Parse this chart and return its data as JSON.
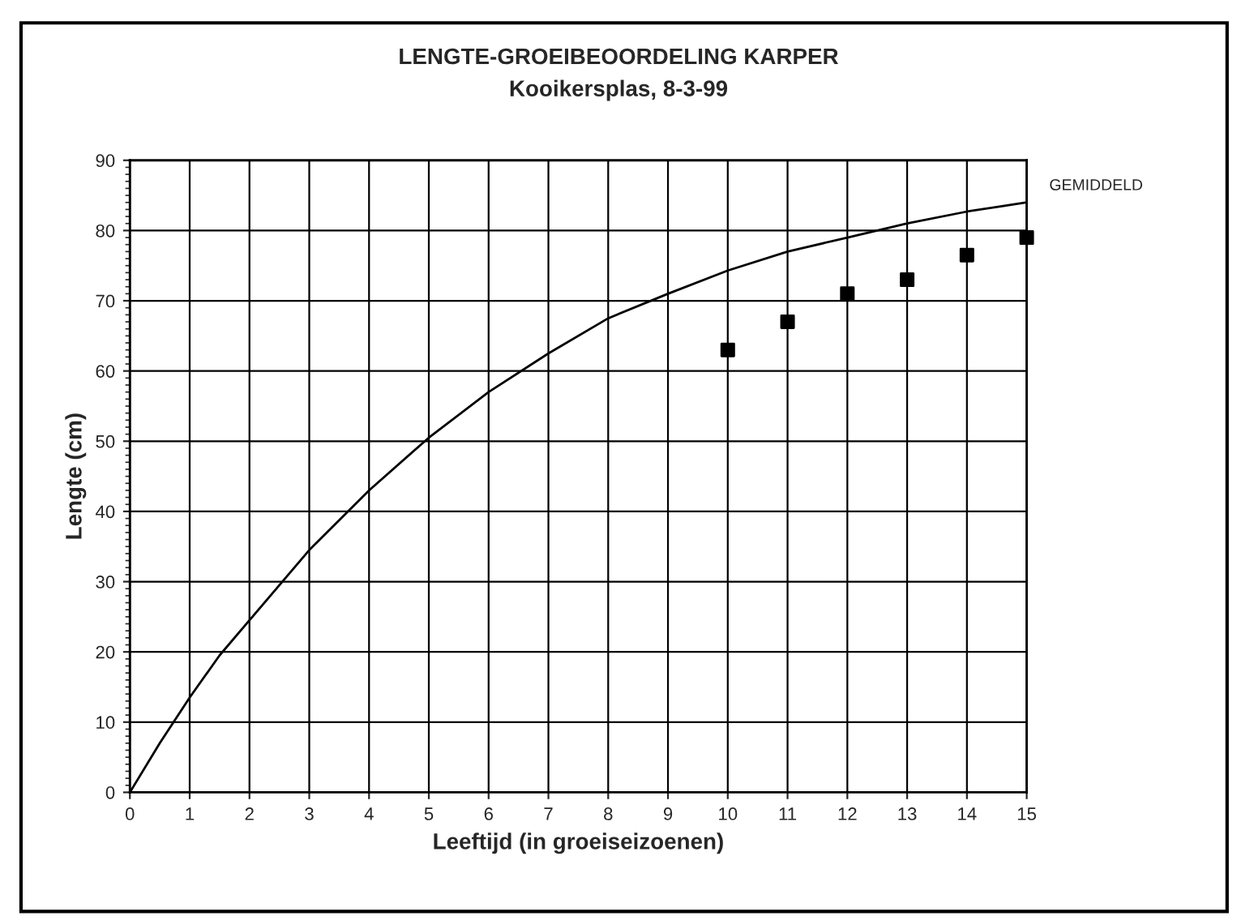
{
  "chart_data": {
    "type": "line",
    "title": "LENGTE-GROEIBEOORDELING KARPER",
    "subtitle": "Kooikersplas, 8-3-99",
    "xlabel": "Leeftijd (in groeiseizoenen)",
    "ylabel": "Lengte (cm)",
    "xlim": [
      0,
      15
    ],
    "ylim": [
      0,
      90
    ],
    "xticks": [
      0,
      1,
      2,
      3,
      4,
      5,
      6,
      7,
      8,
      9,
      10,
      11,
      12,
      13,
      14,
      15
    ],
    "yticks": [
      0,
      10,
      20,
      30,
      40,
      50,
      60,
      70,
      80,
      90
    ],
    "grid": true,
    "legend": false,
    "series": [
      {
        "name": "GEMIDDELD",
        "color": "#000000",
        "marker": "none",
        "line_style": "solid",
        "x": [
          0,
          0.5,
          1,
          1.5,
          2,
          3,
          4,
          5,
          6,
          7,
          8,
          9,
          10,
          11,
          12,
          13,
          14,
          15
        ],
        "values": [
          0,
          7,
          13.5,
          19.5,
          24.5,
          34.5,
          43,
          50.5,
          57,
          62.5,
          67.5,
          71,
          74.3,
          77,
          79,
          81,
          82.7,
          84
        ]
      },
      {
        "type": "scatter",
        "color": "#000000",
        "marker": "square",
        "x": [
          10,
          11,
          12,
          13,
          14,
          15
        ],
        "values": [
          63,
          67,
          71,
          73,
          76.5,
          79
        ]
      }
    ]
  }
}
